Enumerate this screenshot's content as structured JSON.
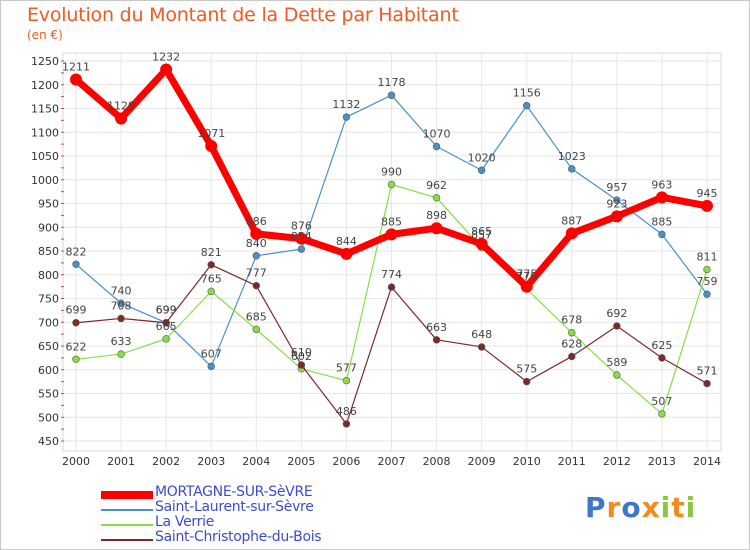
{
  "title": "Evolution du Montant de la Dette par Habitant",
  "unit": "(en €)",
  "logo": {
    "text": "Proxiti",
    "colors": [
      "#3c78c8",
      "#f08c1e",
      "#3c78c8",
      "#f08c1e",
      "#8cc83c",
      "#f08c1e",
      "#8cc83c"
    ]
  },
  "chart_data": {
    "type": "line",
    "title": "Evolution du Montant de la Dette par Habitant",
    "ylabel": "(en €)",
    "xlabel": "",
    "ylim": [
      450,
      1250
    ],
    "yticks": [
      450,
      500,
      550,
      600,
      650,
      700,
      750,
      800,
      850,
      900,
      950,
      1000,
      1050,
      1100,
      1150,
      1200,
      1250
    ],
    "grid": true,
    "legend": "bottom-left",
    "x": [
      "2000",
      "2001",
      "2002",
      "2003",
      "2004",
      "2005",
      "2006",
      "2007",
      "2008",
      "2009",
      "2010",
      "2011",
      "2012",
      "2013",
      "2014"
    ],
    "series": [
      {
        "name": "MORTAGNE-SUR-SèVRE",
        "color": "#ff0000",
        "values": [
          1211,
          1129,
          1232,
          1071,
          886,
          876,
          844,
          885,
          898,
          865,
          775,
          887,
          923,
          963,
          945
        ]
      },
      {
        "name": "Saint-Laurent-sur-Sèvre",
        "color": "#4a90c8",
        "values": [
          822,
          740,
          699,
          607,
          840,
          854,
          1132,
          1178,
          1070,
          1020,
          1156,
          1023,
          957,
          885,
          759
        ]
      },
      {
        "name": "La Verrie",
        "color": "#88dd44",
        "values": [
          622,
          633,
          665,
          765,
          685,
          602,
          577,
          990,
          962,
          857,
          770,
          678,
          589,
          507,
          811
        ]
      },
      {
        "name": "Saint-Christophe-du-Bois",
        "color": "#7a2a2a",
        "values": [
          699,
          708,
          699,
          821,
          777,
          610,
          486,
          774,
          663,
          648,
          575,
          628,
          692,
          625,
          571
        ]
      }
    ]
  }
}
